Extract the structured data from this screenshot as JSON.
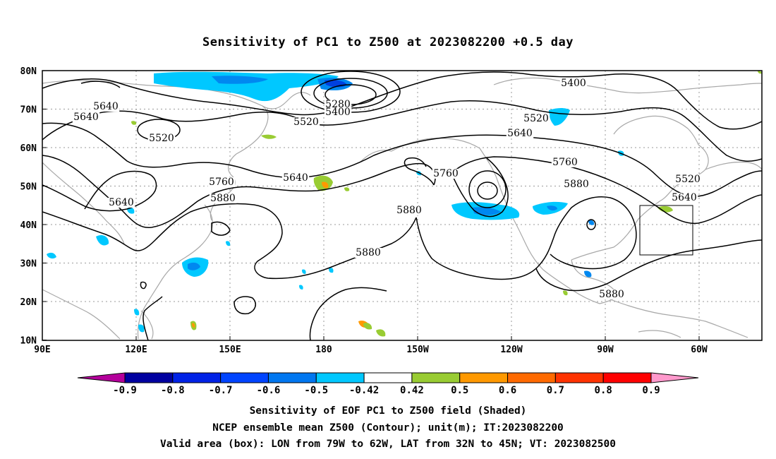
{
  "title": "Sensitivity of PC1 to Z500 at 2023082200 +0.5 day",
  "lat_labels": [
    "80N",
    "70N",
    "60N",
    "50N",
    "40N",
    "30N",
    "20N",
    "10N"
  ],
  "lon_labels": [
    "90E",
    "120E",
    "150E",
    "180",
    "150W",
    "120W",
    "90W",
    "60W"
  ],
  "contour_labels": [
    "5280",
    "5400",
    "5400",
    "5520",
    "5520",
    "5520",
    "5520",
    "5640",
    "5640",
    "5640",
    "5640",
    "5640",
    "5640",
    "5760",
    "5760",
    "5760",
    "5880",
    "5880",
    "5880",
    "5880",
    "5880"
  ],
  "colorbar": {
    "labels": [
      "-0.9",
      "-0.8",
      "-0.7",
      "-0.6",
      "-0.5",
      "-0.42",
      "0.42",
      "0.5",
      "0.6",
      "0.7",
      "0.8",
      "0.9"
    ],
    "colors": [
      "#b4009b",
      "#0000a0",
      "#0022e6",
      "#0044ff",
      "#0077f0",
      "#00c8ff",
      "#ffffff",
      "#99cc33",
      "#ff9900",
      "#ff6a00",
      "#ff3300",
      "#ff0000",
      "#ff99cc"
    ]
  },
  "box": {
    "lon_west": "79W",
    "lon_east": "62W",
    "lat_south": "32N",
    "lat_north": "45N"
  },
  "captions": {
    "line1": "Sensitivity of EOF PC1 to Z500 field (Shaded)",
    "line2": "NCEP ensemble mean Z500 (Contour); unit(m); IT:2023082200",
    "line3": "Valid area (box): LON from 79W to 62W, LAT from 32N to 45N; VT: 2023082500"
  }
}
